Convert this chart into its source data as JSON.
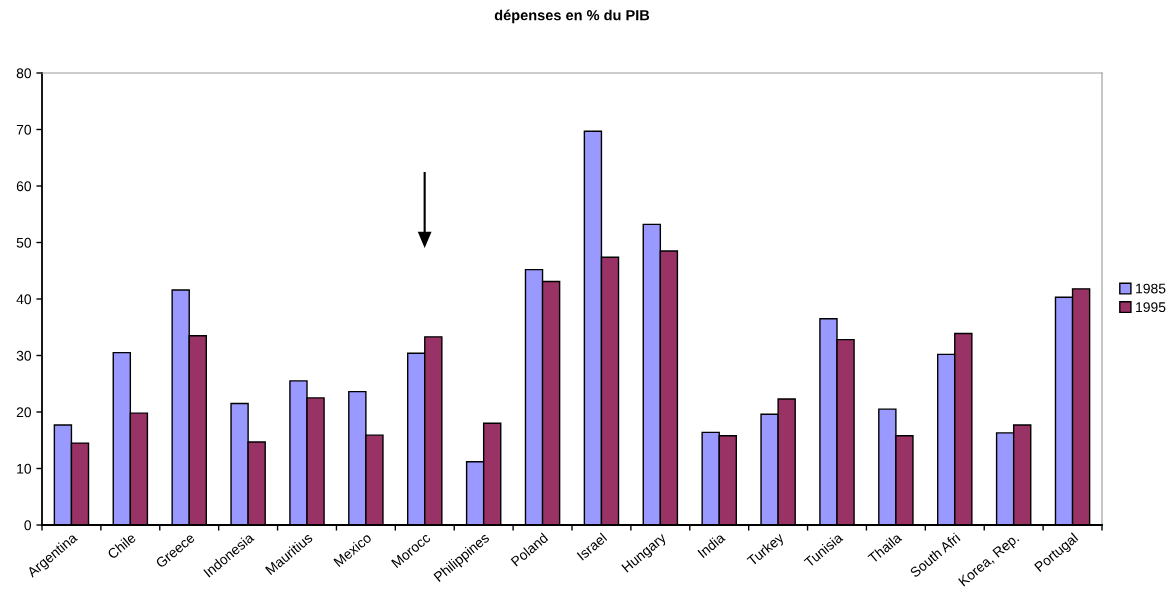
{
  "chart_data": {
    "type": "bar",
    "title": "dépenses en % du PIB",
    "categories": [
      "Argentina",
      "Chile",
      "Greece",
      "Indonesia",
      "Mauritius",
      "Mexico",
      "Morocc",
      "Philippines",
      "Poland",
      "Israel",
      "Hungary",
      "India",
      "Turkey",
      "Tunisia",
      "Thaila",
      "South Afri",
      "Korea, Rep.",
      "Portugal"
    ],
    "series": [
      {
        "name": "1985",
        "color": "#9999ff",
        "values": [
          17.7,
          30.5,
          41.6,
          21.5,
          25.5,
          23.6,
          30.4,
          11.2,
          45.2,
          69.7,
          53.2,
          16.4,
          19.6,
          36.5,
          20.5,
          30.2,
          16.3,
          40.3
        ]
      },
      {
        "name": "1995",
        "color": "#993366",
        "values": [
          14.5,
          19.8,
          33.5,
          14.7,
          22.5,
          15.9,
          33.3,
          18.0,
          43.1,
          47.4,
          48.5,
          15.8,
          22.3,
          32.8,
          15.8,
          33.9,
          17.7,
          41.8
        ]
      }
    ],
    "ylim": [
      0,
      80
    ],
    "yticks": [
      0,
      10,
      20,
      30,
      40,
      50,
      60,
      70,
      80
    ],
    "grid": false,
    "legend": "right"
  }
}
